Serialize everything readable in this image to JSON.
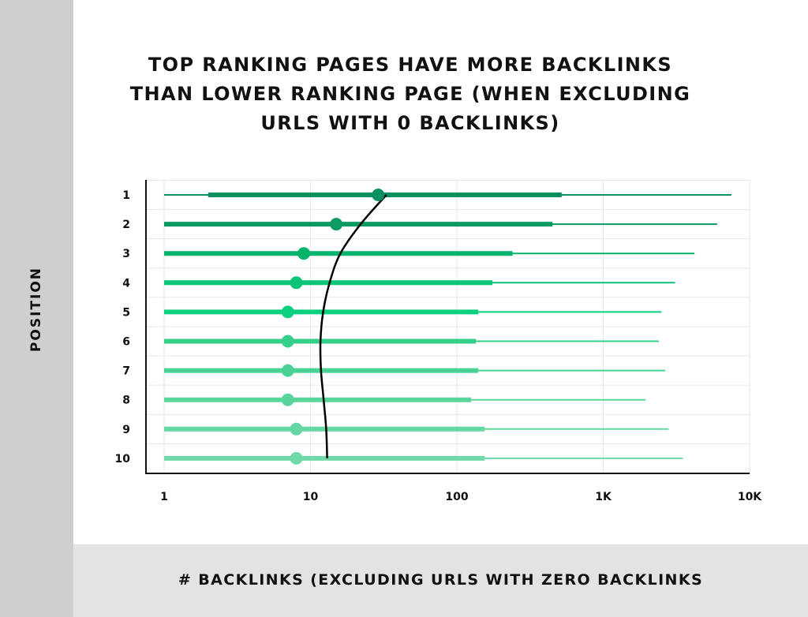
{
  "chart_data": {
    "type": "range",
    "title_lines": [
      "TOP RANKING PAGES HAVE MORE BACKLINKS",
      "THAN LOWER RANKING PAGE (WHEN EXCLUDING",
      "URLS WITH 0 BACKLINKS)"
    ],
    "xlabel": "# BACKLINKS (EXCLUDING URLS WITH ZERO BACKLINKS",
    "ylabel": "POSITION",
    "x_scale": "log",
    "xlim": [
      1,
      10000
    ],
    "x_tick_values": [
      1,
      10,
      100,
      1000,
      10000
    ],
    "x_tick_labels": [
      "1",
      "10",
      "100",
      "1K",
      "10K"
    ],
    "grid": true,
    "categories": [
      "1",
      "2",
      "3",
      "4",
      "5",
      "6",
      "7",
      "8",
      "9",
      "10"
    ],
    "series": [
      {
        "min": 1,
        "q1": 2,
        "median": 29,
        "q3": 520,
        "max": 7500
      },
      {
        "min": 1,
        "q1": 1,
        "median": 15,
        "q3": 450,
        "max": 6000
      },
      {
        "min": 1,
        "q1": 1,
        "median": 9,
        "q3": 240,
        "max": 4200
      },
      {
        "min": 1,
        "q1": 1,
        "median": 8,
        "q3": 175,
        "max": 3100
      },
      {
        "min": 1,
        "q1": 1,
        "median": 7,
        "q3": 140,
        "max": 2500
      },
      {
        "min": 1,
        "q1": 1,
        "median": 7,
        "q3": 135,
        "max": 2400
      },
      {
        "min": 1,
        "q1": 1,
        "median": 7,
        "q3": 140,
        "max": 2650
      },
      {
        "min": 1,
        "q1": 1,
        "median": 7,
        "q3": 125,
        "max": 1950
      },
      {
        "min": 1,
        "q1": 1,
        "median": 8,
        "q3": 155,
        "max": 2800
      },
      {
        "min": 1,
        "q1": 1,
        "median": 8,
        "q3": 155,
        "max": 3500
      }
    ],
    "trend": [
      {
        "position": 1,
        "value": 33
      },
      {
        "position": 2,
        "value": 22
      },
      {
        "position": 3,
        "value": 16
      },
      {
        "position": 4,
        "value": 13.5
      },
      {
        "position": 5,
        "value": 12.2
      },
      {
        "position": 6,
        "value": 11.7
      },
      {
        "position": 7,
        "value": 11.8
      },
      {
        "position": 8,
        "value": 12.3
      },
      {
        "position": 9,
        "value": 12.8
      },
      {
        "position": 10,
        "value": 13
      }
    ],
    "colors": [
      "#0a8f5f",
      "#0c9a63",
      "#06b36d",
      "#0cc478",
      "#0ad07f",
      "#35cf8a",
      "#49d294",
      "#58d59b",
      "#64d7a2",
      "#72d9aa"
    ],
    "trend_color": "#000000"
  }
}
